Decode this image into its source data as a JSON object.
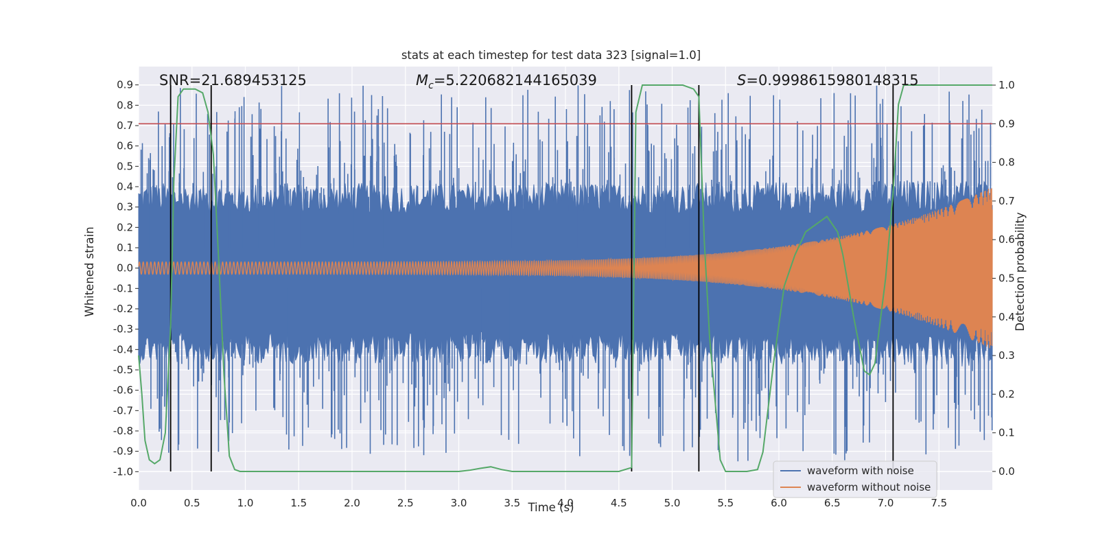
{
  "chart_data": {
    "type": "line",
    "title": "stats at each timestep for test data 323 [signal=1.0]",
    "xlabel": "Time (s)",
    "ylabel": "Whitened strain",
    "y2label": "Detection probability",
    "xlim": [
      0.0,
      8.0
    ],
    "ylim": [
      -1.09,
      0.99
    ],
    "y2lim": [
      -0.048,
      1.048
    ],
    "xticks": [
      "0.0",
      "0.5",
      "1.0",
      "1.5",
      "2.0",
      "2.5",
      "3.0",
      "3.5",
      "4.0",
      "4.5",
      "5.0",
      "5.5",
      "6.0",
      "6.5",
      "7.0",
      "7.5"
    ],
    "yticks": [
      "0.9",
      "0.8",
      "0.7",
      "0.6",
      "0.5",
      "0.4",
      "0.3",
      "0.2",
      "0.1",
      "0.0",
      "-0.1",
      "-0.2",
      "-0.3",
      "-0.4",
      "-0.5",
      "-0.6",
      "-0.7",
      "-0.8",
      "-0.9",
      "-1.0"
    ],
    "y2ticks": [
      "1.0",
      "0.9",
      "0.8",
      "0.7",
      "0.6",
      "0.5",
      "0.4",
      "0.3",
      "0.2",
      "0.1",
      "0.0"
    ],
    "annotations": {
      "snr": "SNR=21.689453125",
      "mc_symbol": "M",
      "mc_sub": "c",
      "mc_value": "=5.220682144165039",
      "s_symbol": "S",
      "s_value": "=0.9998615980148315"
    },
    "threshold": {
      "axis": "right",
      "value": 0.9,
      "color": "#c44e52"
    },
    "vertical_markers": [
      0.3,
      0.68,
      4.62,
      5.25,
      7.07
    ],
    "series": [
      {
        "name": "waveform with noise",
        "color": "#4c72b0",
        "description": "noisy whitened strain, envelope approx +/-0.3 (spikes to ~0.9 / -1.0)",
        "envelope_noise": 0.3,
        "spike_max": 0.9,
        "spike_min": -1.0
      },
      {
        "name": "waveform without noise",
        "color": "#dd8452",
        "description": "chirp: amplitude grows from ~0.03 to ~0.4, frequency increasing",
        "amplitude_start": 0.03,
        "amplitude_end": 0.4
      },
      {
        "name": "detection probability",
        "color": "#55a868",
        "axis": "right",
        "x": [
          0.0,
          0.03,
          0.06,
          0.1,
          0.15,
          0.2,
          0.25,
          0.3,
          0.33,
          0.37,
          0.42,
          0.47,
          0.53,
          0.6,
          0.65,
          0.7,
          0.75,
          0.8,
          0.85,
          0.9,
          0.95,
          1.0,
          1.5,
          2.0,
          2.5,
          3.0,
          3.1,
          3.2,
          3.3,
          3.4,
          3.5,
          4.0,
          4.5,
          4.62,
          4.66,
          4.72,
          4.8,
          5.0,
          5.1,
          5.2,
          5.25,
          5.3,
          5.35,
          5.45,
          5.5,
          5.6,
          5.7,
          5.8,
          5.85,
          5.95,
          6.05,
          6.15,
          6.25,
          6.35,
          6.45,
          6.55,
          6.6,
          6.7,
          6.8,
          6.85,
          6.9,
          7.0,
          7.07,
          7.12,
          7.17,
          7.25,
          7.5,
          7.8,
          8.0
        ],
        "values": [
          0.3,
          0.2,
          0.08,
          0.03,
          0.02,
          0.03,
          0.1,
          0.38,
          0.75,
          0.97,
          0.99,
          0.99,
          0.99,
          0.98,
          0.93,
          0.82,
          0.55,
          0.25,
          0.04,
          0.005,
          0.0,
          0.0,
          0.0,
          0.0,
          0.0,
          0.0,
          0.003,
          0.008,
          0.012,
          0.005,
          0.0,
          0.0,
          0.0,
          0.01,
          0.93,
          1.0,
          1.0,
          1.0,
          1.0,
          0.99,
          0.97,
          0.6,
          0.35,
          0.03,
          0.0,
          0.0,
          0.0,
          0.005,
          0.05,
          0.28,
          0.48,
          0.56,
          0.62,
          0.64,
          0.66,
          0.62,
          0.56,
          0.4,
          0.26,
          0.25,
          0.28,
          0.5,
          0.72,
          0.95,
          1.0,
          1.0,
          1.0,
          1.0,
          1.0
        ]
      }
    ],
    "legend_position": "lower-right"
  }
}
